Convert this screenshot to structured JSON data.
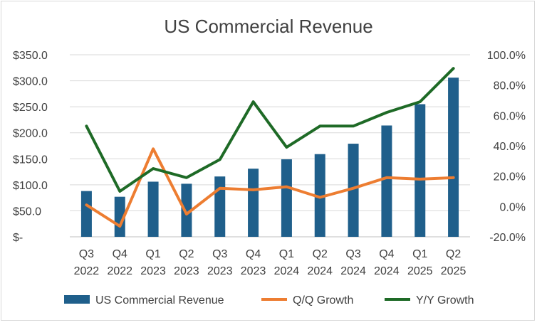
{
  "chart_data": {
    "type": "bar",
    "title": "US Commercial Revenue",
    "categories": [
      [
        "Q3",
        "2022"
      ],
      [
        "Q4",
        "2022"
      ],
      [
        "Q1",
        "2023"
      ],
      [
        "Q2",
        "2023"
      ],
      [
        "Q3",
        "2023"
      ],
      [
        "Q4",
        "2023"
      ],
      [
        "Q1",
        "2024"
      ],
      [
        "Q2",
        "2024"
      ],
      [
        "Q3",
        "2024"
      ],
      [
        "Q4",
        "2024"
      ],
      [
        "Q1",
        "2025"
      ],
      [
        "Q2",
        "2025"
      ]
    ],
    "y_left": {
      "ylim": [
        0,
        350
      ],
      "ticks": [
        0,
        50,
        100,
        150,
        200,
        250,
        300,
        350
      ],
      "tick_labels": [
        "$-",
        "$50.0",
        "$100.0",
        "$150.0",
        "$200.0",
        "$250.0",
        "$300.0",
        "$350.0"
      ]
    },
    "y_right": {
      "ylim": [
        -20,
        100
      ],
      "ticks": [
        -20,
        0,
        20,
        40,
        60,
        80,
        100
      ],
      "tick_labels": [
        "-20.0%",
        "0.0%",
        "20.0%",
        "40.0%",
        "60.0%",
        "80.0%",
        "100.0%"
      ]
    },
    "grid": true,
    "legend_position": "bottom",
    "series": [
      {
        "name": "US Commercial Revenue",
        "kind": "bar",
        "axis": "left",
        "color": "#1f5f8b",
        "values": [
          88,
          77,
          106,
          102,
          116,
          131,
          149,
          159,
          179,
          214,
          255,
          306
        ]
      },
      {
        "name": "Q/Q Growth",
        "kind": "line",
        "axis": "right",
        "color": "#ed7d31",
        "values": [
          1,
          -13,
          38,
          -5,
          12,
          11,
          13,
          6,
          12,
          19,
          18,
          19
        ]
      },
      {
        "name": "Y/Y Growth",
        "kind": "line",
        "axis": "right",
        "color": "#1e6a26",
        "values": [
          53,
          10,
          25,
          19,
          31,
          69,
          39,
          53,
          53,
          62,
          69,
          91
        ]
      }
    ]
  }
}
